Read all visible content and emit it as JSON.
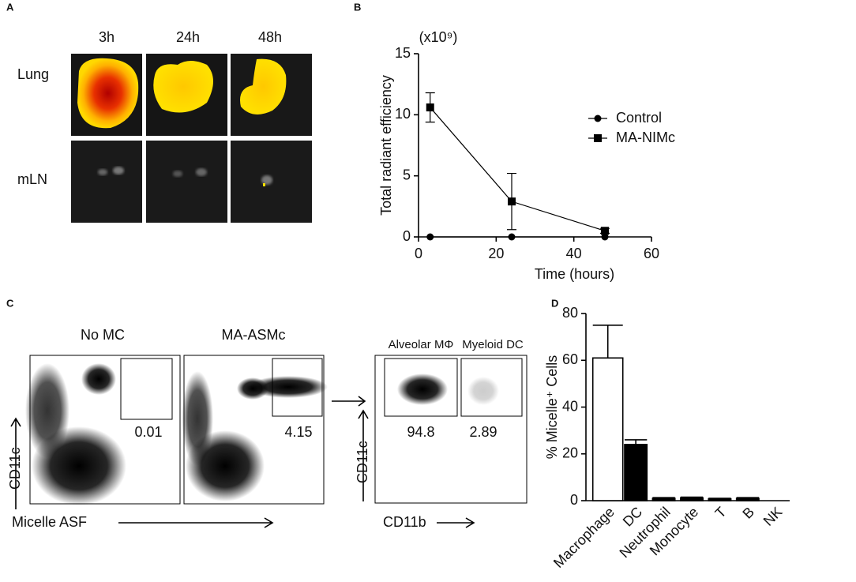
{
  "panel_labels": [
    "A",
    "B",
    "C",
    "D"
  ],
  "imaging": {
    "columns": [
      "3h",
      "24h",
      "48h"
    ],
    "rows": [
      "Lung",
      "mLN"
    ]
  },
  "flow": {
    "plots": [
      {
        "title": "No MC",
        "gate_value": 0.01
      },
      {
        "title": "MA-ASMc",
        "gate_value": 4.15
      },
      {
        "gates": [
          {
            "label": "Alveolar MΦ",
            "value": 94.8
          },
          {
            "label": "Myeloid DC",
            "value": 2.89
          }
        ]
      }
    ],
    "y_label": "CD11c",
    "x_labels": [
      "Micelle ASF",
      "CD11b"
    ]
  },
  "chart_data": [
    {
      "type": "line",
      "y_multiplier": "(x10⁹)",
      "ylabel": "Total radiant efficiency",
      "xlabel": "Time (hours)",
      "x": [
        3,
        24,
        48
      ],
      "xlim": [
        0,
        60
      ],
      "xticks": [
        0,
        20,
        40,
        60
      ],
      "ylim": [
        0,
        15
      ],
      "yticks": [
        0,
        5,
        10,
        15
      ],
      "legend": "upper right",
      "series": [
        {
          "name": "Control",
          "color": "#000000",
          "marker": "circle",
          "values": [
            0,
            0,
            0
          ]
        },
        {
          "name": "MA-NIMc",
          "color": "#000000",
          "marker": "square",
          "values": [
            10.6,
            2.9,
            0.5
          ],
          "errors": [
            1.2,
            2.3,
            0.2
          ]
        }
      ]
    },
    {
      "type": "bar",
      "ylabel": "% Micelle⁺ Cells",
      "categories": [
        "Macrophage",
        "DC",
        "Neutrophil",
        "Monocyte",
        "T",
        "B",
        "NK"
      ],
      "values": [
        61,
        24,
        1,
        1.2,
        0.8,
        1,
        0
      ],
      "errors": [
        14,
        2,
        0.3,
        0.3,
        0.2,
        0.3,
        0
      ],
      "colors": [
        "#ffffff",
        "#000000",
        "#000000",
        "#000000",
        "#000000",
        "#000000",
        "#000000"
      ],
      "ylim": [
        0,
        80
      ],
      "yticks": [
        0,
        20,
        40,
        60,
        80
      ]
    }
  ]
}
